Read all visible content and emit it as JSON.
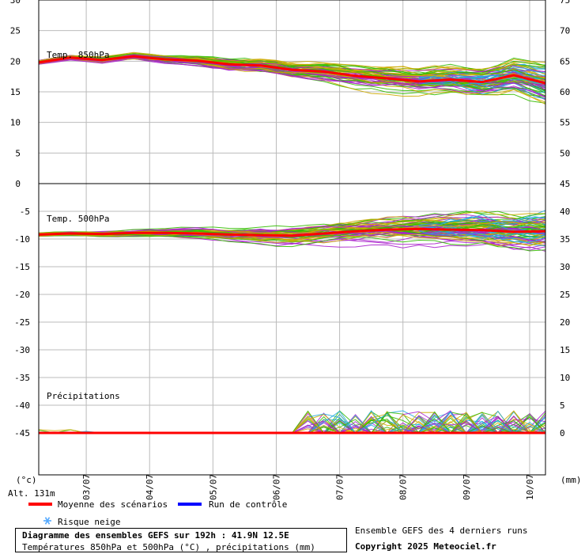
{
  "chart_data": [
    {
      "type": "line",
      "title": "Temp. 850hPa",
      "ylim": [
        0,
        30
      ],
      "ylim_right": [
        45,
        75
      ],
      "y_ticks_left": [
        0,
        5,
        10,
        15,
        20,
        25,
        30
      ],
      "y_ticks_right": [
        45,
        50,
        55,
        60,
        65,
        70,
        75
      ],
      "x": [
        0,
        12,
        24,
        36,
        48,
        60,
        72,
        84,
        96,
        108,
        120,
        132,
        144,
        156,
        168,
        180,
        192
      ],
      "series": [
        {
          "name": "Moyenne des scénarios",
          "color": "#ff0000",
          "values": [
            19.8,
            20.6,
            20.2,
            20.8,
            20.3,
            20.1,
            19.5,
            19.3,
            18.6,
            18.3,
            17.6,
            17.2,
            16.7,
            17.0,
            16.6,
            17.7,
            16.4
          ]
        }
      ]
    },
    {
      "type": "line",
      "title": "Temp. 500hPa",
      "ylim": [
        -50,
        0
      ],
      "ylim_right": [
        0,
        45
      ],
      "y_ticks_left": [
        -45,
        -40,
        -35,
        -30,
        -25,
        -20,
        -15,
        -10,
        -5,
        0
      ],
      "y_ticks_right": [
        0,
        5,
        10,
        15,
        20,
        25,
        30,
        35,
        40,
        45
      ],
      "x": [
        0,
        12,
        24,
        36,
        48,
        60,
        72,
        84,
        96,
        108,
        120,
        132,
        144,
        156,
        168,
        180,
        192
      ],
      "series": [
        {
          "name": "Moyenne des scénarios",
          "color": "#ff0000",
          "values": [
            -9.2,
            -9.0,
            -9.1,
            -8.9,
            -8.9,
            -9.0,
            -9.2,
            -9.3,
            -9.4,
            -9.0,
            -8.6,
            -8.3,
            -8.2,
            -8.3,
            -8.4,
            -8.7,
            -8.6
          ]
        }
      ]
    },
    {
      "type": "line",
      "title": "Précipitations",
      "unit": "(mm)",
      "ylim": [
        0,
        10
      ],
      "x": [
        0,
        12,
        24,
        36,
        48,
        60,
        72,
        84,
        96,
        108,
        120,
        132,
        144,
        156,
        168,
        180,
        192
      ],
      "series": [
        {
          "name": "Moyenne des scénarios",
          "color": "#ff0000",
          "values": [
            0,
            0,
            0,
            0,
            0,
            0,
            0,
            0,
            0,
            0,
            0,
            0,
            0,
            0,
            0,
            0,
            0
          ]
        }
      ]
    }
  ],
  "axes": {
    "left_unit": "(°c)",
    "right_unit": "(mm)",
    "x_labels": [
      {
        "t": 18,
        "label": "03/07"
      },
      {
        "t": 42,
        "label": "04/07"
      },
      {
        "t": 66,
        "label": "05/07"
      },
      {
        "t": 90,
        "label": "06/07"
      },
      {
        "t": 114,
        "label": "07/07"
      },
      {
        "t": 138,
        "label": "08/07"
      },
      {
        "t": 162,
        "label": "09/07"
      },
      {
        "t": 186,
        "label": "10/07"
      }
    ],
    "altitude": "Alt. 131m"
  },
  "legend": {
    "mean_label": "Moyenne des scénarios",
    "mean_color": "#ff0000",
    "control_label": "Run de contrôle",
    "control_color": "#0000ff",
    "snow_label": "Risque neige",
    "snow_icon": "snowflake-icon",
    "snow_color": "#55aaff"
  },
  "footer": {
    "title": "Diagramme des ensembles GEFS sur 192h : 41.9N 12.5E",
    "subtitle": "Températures 850hPa et 500hPa (°C) , précipitations (mm)",
    "right_info": "Ensemble GEFS des 4 derniers runs",
    "copyright": "Copyright 2025 Meteociel.fr"
  },
  "colors": {
    "ensemble": [
      "#33bb00",
      "#aa22cc",
      "#ccaa00",
      "#22aadd"
    ],
    "grid": "#bbbbbb"
  }
}
